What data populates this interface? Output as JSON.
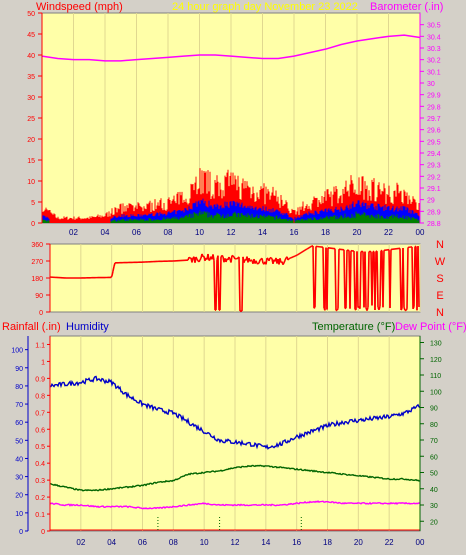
{
  "header": {
    "left_title": "Windspeed (mph)",
    "center_title": "24 hour graph day   November 23 2022",
    "right_title": "Barometer (.in)"
  },
  "legend_bottom": {
    "rainfall": "Rainfall (.in)",
    "humidity": "Humidity",
    "temperature": "Temperature (°F)",
    "dewpoint": "Dew Point (°F)"
  },
  "colors": {
    "plot_bg": "#ffffa8",
    "frame_bg": "#d4d0c8",
    "wind": "#ff0000",
    "gust_mid": "#0000ff",
    "gust_low": "#008000",
    "barometer": "#ff00ff",
    "humidity": "#0000c8",
    "temperature": "#006400",
    "dewpoint": "#ff00ff",
    "rain": "#ff0000",
    "title_yellow": "#ffff00"
  },
  "chart_data": [
    {
      "type": "area",
      "title": "24 hour graph day   November 23 2022",
      "x_ticks": [
        "02",
        "04",
        "06",
        "08",
        "10",
        "12",
        "14",
        "16",
        "18",
        "20",
        "22",
        "00"
      ],
      "left_axis": {
        "label": "Windspeed (mph)",
        "ylim": [
          0,
          50
        ],
        "ticks": [
          "0",
          "5",
          "10",
          "15",
          "20",
          "25",
          "30",
          "35",
          "40",
          "45",
          "50"
        ]
      },
      "right_axis": {
        "label": "Barometer (.in)",
        "ylim": [
          28.8,
          30.6
        ],
        "ticks": [
          "28.8",
          "28.9",
          "29",
          "29.1",
          "29.2",
          "29.3",
          "29.4",
          "29.5",
          "29.6",
          "29.7",
          "29.8",
          "29.9",
          "30",
          "30.1",
          "30.2",
          "30.3",
          "30.4",
          "30.5"
        ]
      },
      "series": [
        {
          "name": "Windspeed (mph)",
          "hours": [
            0,
            1,
            2,
            3,
            4,
            5,
            6,
            7,
            8,
            9,
            10,
            11,
            12,
            13,
            14,
            15,
            16,
            17,
            18,
            19,
            20,
            21,
            22,
            23,
            24
          ],
          "values": [
            3,
            1,
            1,
            1,
            1.5,
            3,
            3,
            3.5,
            4,
            5,
            9,
            7,
            8,
            7,
            6,
            5,
            2,
            4,
            5,
            6,
            8,
            7,
            6,
            6,
            3
          ]
        },
        {
          "name": "Barometer (.in)",
          "hours": [
            0,
            1,
            2,
            3,
            4,
            5,
            6,
            7,
            8,
            9,
            10,
            11,
            12,
            13,
            14,
            15,
            16,
            17,
            18,
            19,
            20,
            21,
            22,
            23,
            24
          ],
          "values": [
            30.23,
            30.21,
            30.2,
            30.2,
            30.19,
            30.19,
            30.2,
            30.21,
            30.22,
            30.23,
            30.24,
            30.24,
            30.23,
            30.22,
            30.21,
            30.21,
            30.23,
            30.26,
            30.29,
            30.33,
            30.36,
            30.38,
            30.4,
            30.41,
            30.39
          ]
        }
      ]
    },
    {
      "type": "scatter",
      "title": "",
      "x_ticks": [],
      "left_axis": {
        "label": "",
        "ylim": [
          0,
          360
        ],
        "ticks": [
          "0",
          "90",
          "180",
          "270",
          "360"
        ]
      },
      "right_axis": {
        "label": "",
        "ticks": [
          "N",
          "W",
          "S",
          "E",
          "N"
        ]
      },
      "series": [
        {
          "name": "Wind direction",
          "hours": [
            0,
            1,
            2,
            3,
            4,
            4.2,
            5,
            6,
            7,
            8,
            9,
            10,
            11,
            12,
            13,
            14,
            15,
            16,
            17,
            18,
            19,
            20,
            21,
            22,
            23,
            24
          ],
          "values": [
            185,
            180,
            180,
            182,
            183,
            260,
            262,
            264,
            268,
            270,
            275,
            290,
            285,
            280,
            275,
            270,
            265,
            300,
            350,
            340,
            330,
            320,
            320,
            330,
            340,
            350
          ]
        }
      ]
    },
    {
      "type": "line",
      "title": "",
      "x_ticks": [
        "02",
        "04",
        "06",
        "08",
        "10",
        "12",
        "14",
        "16",
        "18",
        "20",
        "22",
        "00"
      ],
      "left_axis": {
        "label": "Rainfall (.in)",
        "ylim": [
          0,
          1.15
        ],
        "ticks": [
          "0",
          "0.1",
          "0.2",
          "0.3",
          "0.4",
          "0.5",
          "0.6",
          "0.7",
          "0.8",
          "0.9",
          "1",
          "1.1"
        ]
      },
      "left_axis_2": {
        "label": "Humidity",
        "ylim": [
          0,
          100
        ],
        "ticks": [
          "0",
          "10",
          "20",
          "30",
          "40",
          "50",
          "60",
          "70",
          "80",
          "90",
          "100"
        ]
      },
      "right_axis": {
        "label": "Temperature (°F)",
        "ylim": [
          14,
          134
        ],
        "ticks": [
          "20",
          "30",
          "40",
          "50",
          "60",
          "70",
          "80",
          "90",
          "100",
          "110",
          "120",
          "130"
        ]
      },
      "series": [
        {
          "name": "Humidity",
          "hours": [
            0,
            1,
            2,
            3,
            4,
            5,
            6,
            7,
            8,
            9,
            10,
            11,
            12,
            13,
            14,
            15,
            16,
            17,
            18,
            19,
            20,
            21,
            22,
            23,
            24
          ],
          "values": [
            80,
            81,
            82,
            84,
            82,
            75,
            70,
            67,
            65,
            60,
            55,
            50,
            49,
            48,
            46,
            48,
            52,
            55,
            58,
            60,
            61,
            62,
            63,
            65,
            69
          ]
        },
        {
          "name": "Temperature (°F)",
          "hours": [
            0,
            1,
            2,
            3,
            4,
            5,
            6,
            7,
            8,
            9,
            10,
            11,
            12,
            13,
            14,
            15,
            16,
            17,
            18,
            19,
            20,
            21,
            22,
            23,
            24
          ],
          "values": [
            43,
            41,
            39,
            39,
            40,
            41,
            42,
            44,
            45,
            49,
            50,
            51,
            53,
            54,
            54,
            53,
            52,
            51,
            50,
            49,
            48,
            47,
            46,
            46,
            45
          ]
        },
        {
          "name": "Dew Point (°F)",
          "hours": [
            0,
            1,
            2,
            3,
            4,
            5,
            6,
            7,
            8,
            9,
            10,
            11,
            12,
            13,
            14,
            15,
            16,
            17,
            18,
            19,
            20,
            21,
            22,
            23,
            24
          ],
          "values": [
            31,
            30,
            30,
            29,
            29,
            29,
            28,
            28,
            29,
            30,
            31,
            30,
            30,
            30,
            30,
            30,
            31,
            32,
            32,
            31,
            31,
            31,
            31,
            31,
            31
          ]
        },
        {
          "name": "Rainfall (.in)",
          "hours": [
            0,
            24
          ],
          "values": [
            0,
            0
          ]
        }
      ]
    }
  ]
}
